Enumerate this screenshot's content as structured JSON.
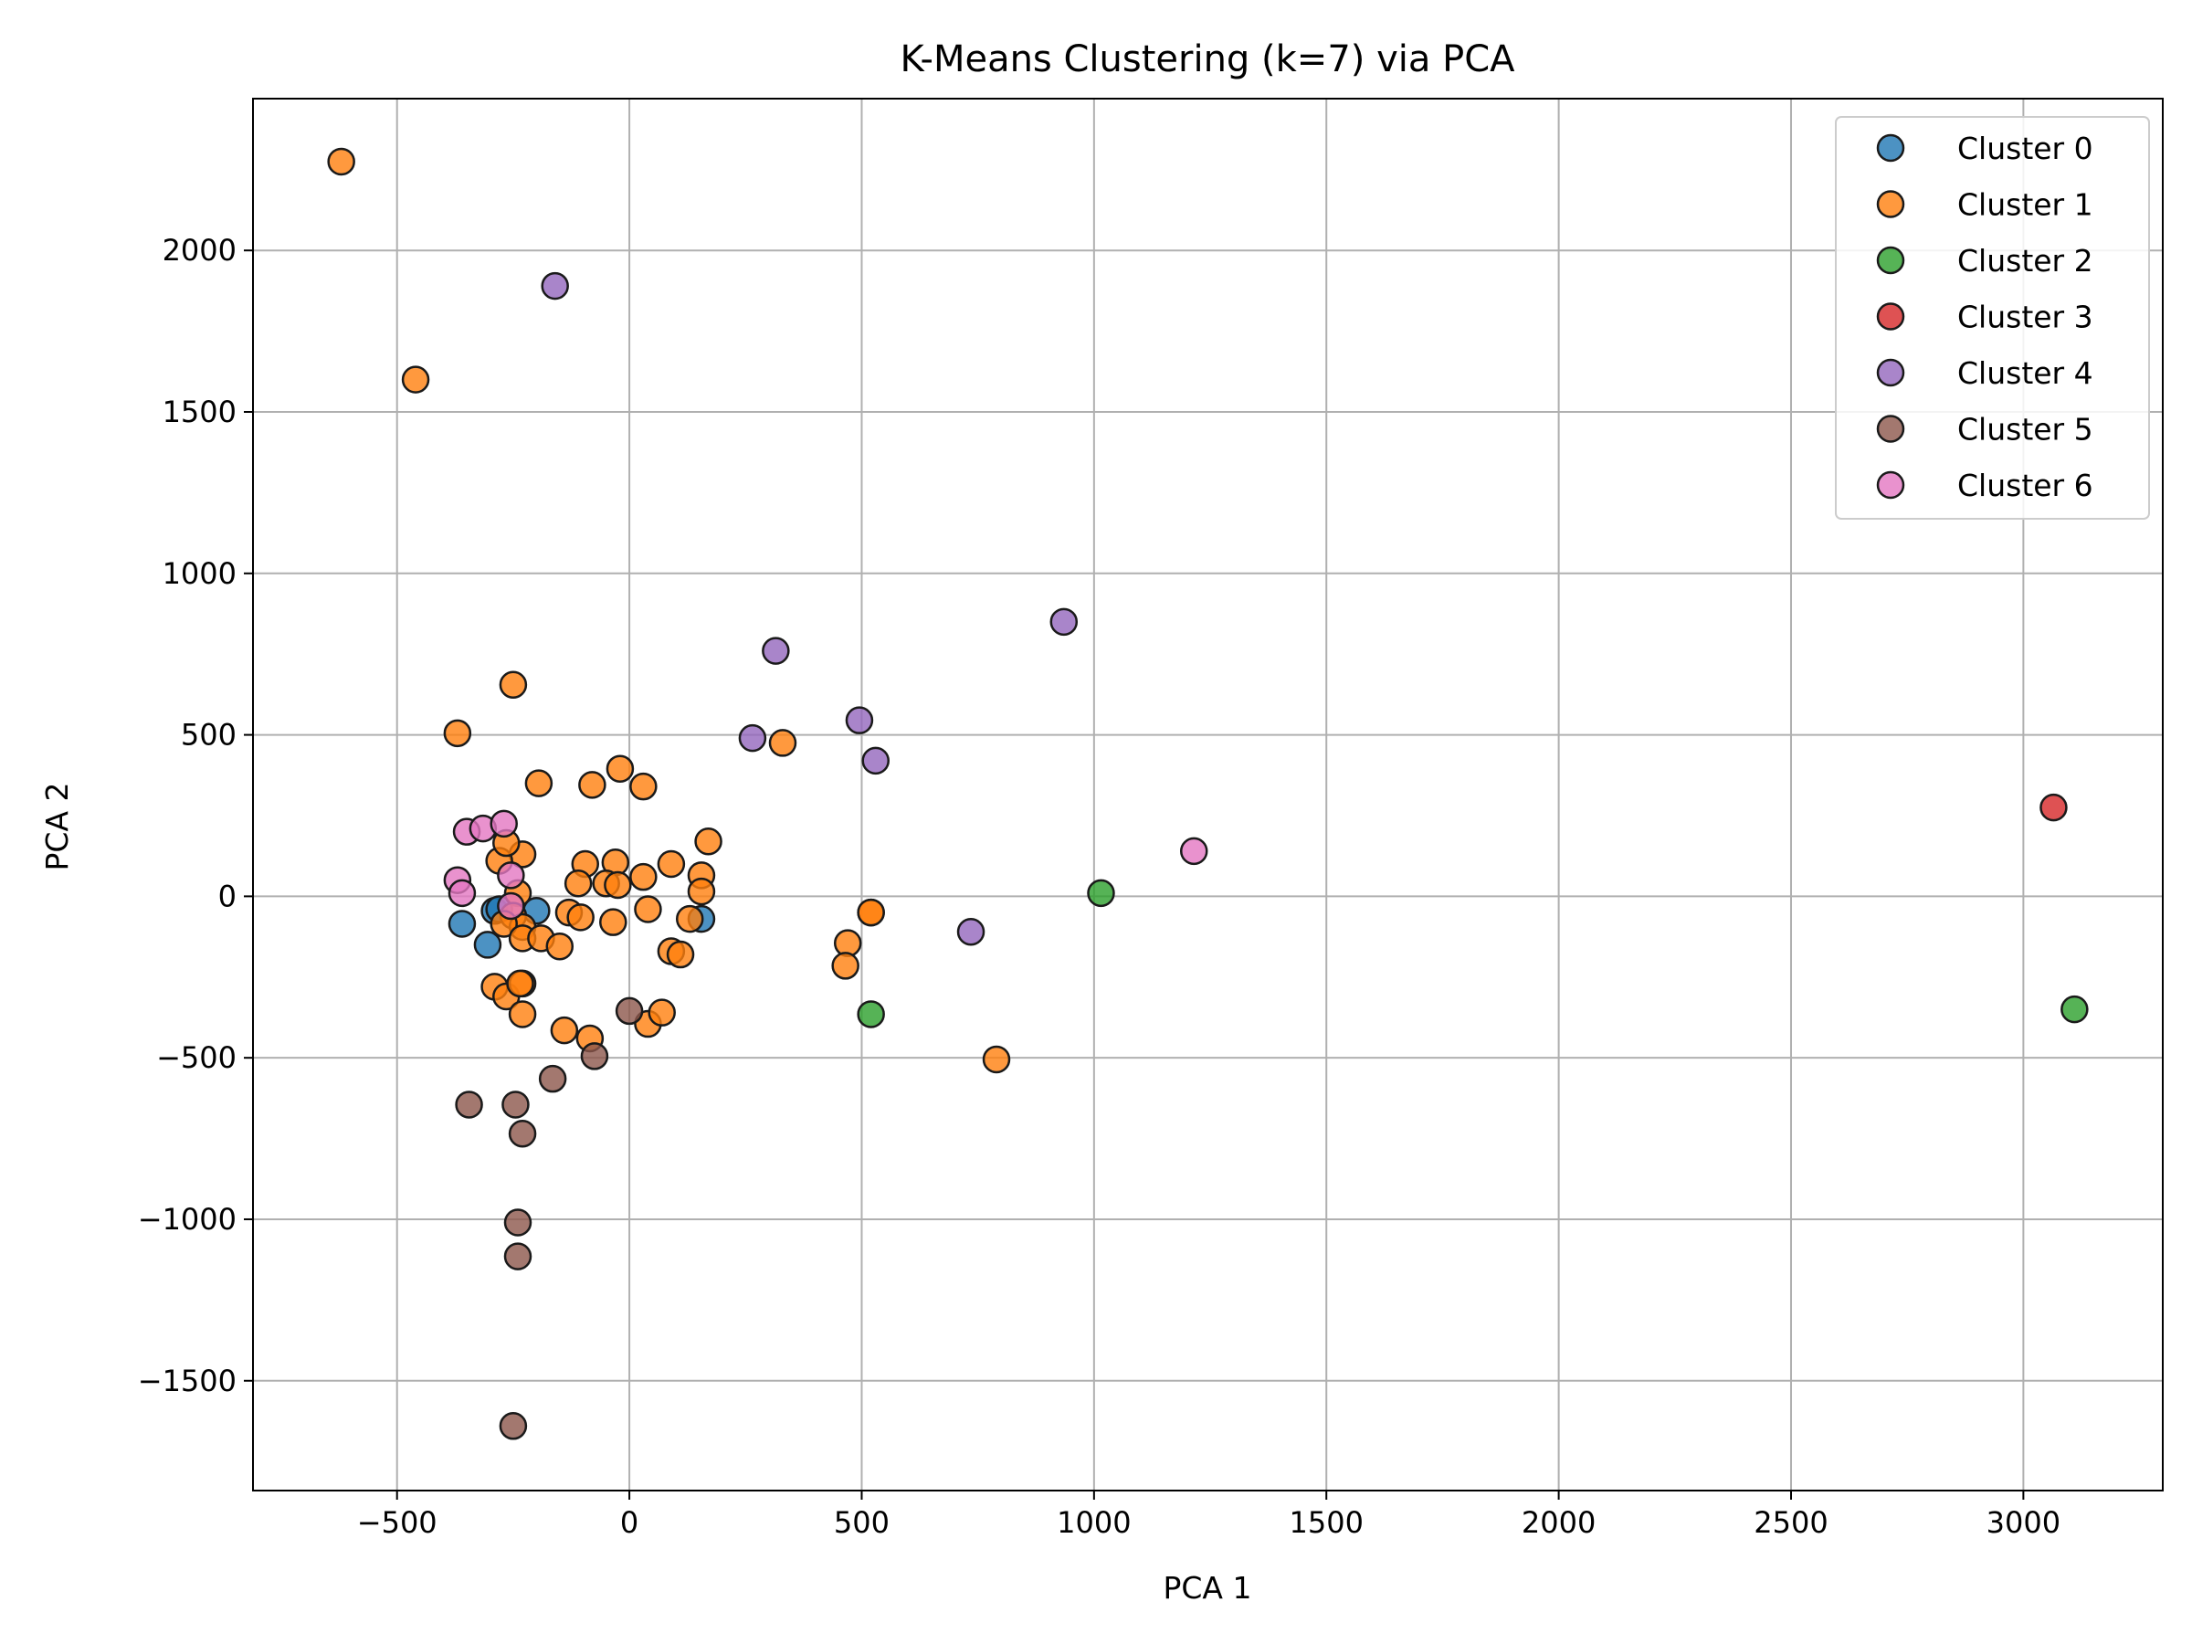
{
  "chart_data": {
    "type": "scatter",
    "title": "K-Means Clustering (k=7) via PCA",
    "xlabel": "PCA 1",
    "ylabel": "PCA 2",
    "xlim": [
      -810,
      3300
    ],
    "ylim": [
      -1840,
      2470
    ],
    "xticks": [
      -500,
      0,
      500,
      1000,
      1500,
      2000,
      2500,
      3000
    ],
    "xtick_labels": [
      "−500",
      "0",
      "500",
      "1000",
      "1500",
      "2000",
      "2500",
      "3000"
    ],
    "yticks": [
      -1500,
      -1000,
      -500,
      0,
      500,
      1000,
      1500,
      2000
    ],
    "ytick_labels": [
      "−1500",
      "−1000",
      "−500",
      "0",
      "500",
      "1000",
      "1500",
      "2000"
    ],
    "grid": true,
    "legend_position": "top-right",
    "series": [
      {
        "name": "Cluster 0",
        "color": "#1f77b4",
        "points": [
          [
            -360,
            -85
          ],
          [
            -305,
            -150
          ],
          [
            -290,
            -45
          ],
          [
            -280,
            -40
          ],
          [
            -200,
            -45
          ],
          [
            155,
            -70
          ]
        ]
      },
      {
        "name": "Cluster 1",
        "color": "#ff7f0e",
        "points": [
          [
            -620,
            2275
          ],
          [
            -460,
            1600
          ],
          [
            -250,
            655
          ],
          [
            -370,
            505
          ],
          [
            -195,
            350
          ],
          [
            -20,
            395
          ],
          [
            30,
            340
          ],
          [
            -80,
            345
          ],
          [
            330,
            475
          ],
          [
            170,
            170
          ],
          [
            90,
            100
          ],
          [
            -95,
            100
          ],
          [
            -30,
            105
          ],
          [
            -230,
            130
          ],
          [
            -280,
            110
          ],
          [
            -265,
            165
          ],
          [
            -110,
            40
          ],
          [
            -50,
            40
          ],
          [
            -25,
            35
          ],
          [
            30,
            60
          ],
          [
            155,
            65
          ],
          [
            155,
            15
          ],
          [
            -240,
            10
          ],
          [
            -130,
            -50
          ],
          [
            -105,
            -65
          ],
          [
            -35,
            -80
          ],
          [
            40,
            -40
          ],
          [
            130,
            -70
          ],
          [
            -250,
            -60
          ],
          [
            -230,
            -95
          ],
          [
            -270,
            -85
          ],
          [
            -230,
            -130
          ],
          [
            -190,
            -130
          ],
          [
            -150,
            -155
          ],
          [
            90,
            -170
          ],
          [
            110,
            -180
          ],
          [
            470,
            -145
          ],
          [
            465,
            -215
          ],
          [
            520,
            -50
          ],
          [
            520,
            -50
          ],
          [
            -290,
            -280
          ],
          [
            -265,
            -310
          ],
          [
            -230,
            -270
          ],
          [
            -230,
            -365
          ],
          [
            -140,
            -415
          ],
          [
            -85,
            -440
          ],
          [
            40,
            -395
          ],
          [
            70,
            -360
          ],
          [
            -235,
            -270
          ],
          [
            790,
            -505
          ]
        ]
      },
      {
        "name": "Cluster 2",
        "color": "#2ca02c",
        "points": [
          [
            1015,
            10
          ],
          [
            520,
            -365
          ],
          [
            3110,
            -350
          ]
        ]
      },
      {
        "name": "Cluster 3",
        "color": "#d62728",
        "points": [
          [
            3065,
            275
          ]
        ]
      },
      {
        "name": "Cluster 4",
        "color": "#9467bd",
        "points": [
          [
            -160,
            1890
          ],
          [
            935,
            850
          ],
          [
            315,
            760
          ],
          [
            265,
            490
          ],
          [
            495,
            545
          ],
          [
            530,
            420
          ],
          [
            735,
            -110
          ]
        ]
      },
      {
        "name": "Cluster 5",
        "color": "#8c564b",
        "points": [
          [
            0,
            -355
          ],
          [
            -75,
            -495
          ],
          [
            -165,
            -565
          ],
          [
            -345,
            -645
          ],
          [
            -245,
            -645
          ],
          [
            -230,
            -735
          ],
          [
            -240,
            -1010
          ],
          [
            -240,
            -1115
          ],
          [
            -250,
            -1640
          ]
        ]
      },
      {
        "name": "Cluster 6",
        "color": "#e377c2",
        "points": [
          [
            -350,
            200
          ],
          [
            -315,
            210
          ],
          [
            -270,
            225
          ],
          [
            -370,
            50
          ],
          [
            -360,
            10
          ],
          [
            -255,
            65
          ],
          [
            -255,
            -30
          ],
          [
            1215,
            140
          ]
        ]
      }
    ]
  }
}
